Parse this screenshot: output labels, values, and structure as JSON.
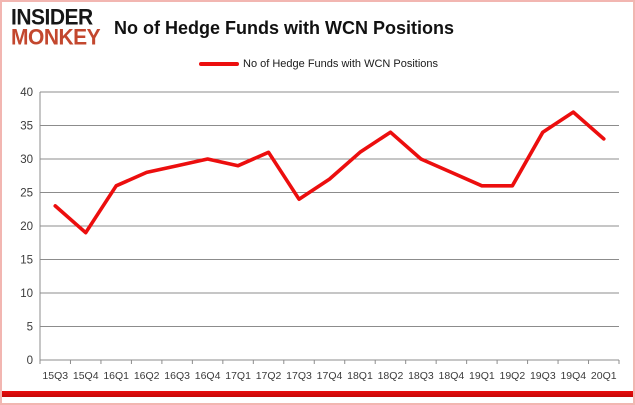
{
  "brand": {
    "line1": "INSIDER",
    "line2": "MONKEY",
    "monkey_color": "#C3472E",
    "insider_color": "#161616"
  },
  "header": {
    "title": "No of Hedge Funds with WCN Positions"
  },
  "legend": {
    "label": "No of Hedge Funds with WCN Positions",
    "swatch_color": "#EC0E0E"
  },
  "chart_data": {
    "type": "line",
    "title": "No of Hedge Funds with WCN Positions",
    "series": [
      {
        "name": "No of Hedge Funds with WCN Positions",
        "values": [
          23,
          19,
          26,
          28,
          29,
          30,
          29,
          31,
          24,
          27,
          31,
          34,
          30,
          28,
          26,
          26,
          34,
          37,
          33
        ]
      }
    ],
    "categories": [
      "15Q3",
      "15Q4",
      "16Q1",
      "16Q2",
      "16Q3",
      "16Q4",
      "17Q1",
      "17Q2",
      "17Q3",
      "17Q4",
      "18Q1",
      "18Q2",
      "18Q3",
      "18Q4",
      "19Q1",
      "19Q2",
      "19Q3",
      "19Q4",
      "20Q1"
    ],
    "xlabel": "",
    "ylabel": "",
    "ylim": [
      0,
      40
    ],
    "ytick_step": 5,
    "grid": true,
    "legend_position": "top",
    "line_color": "#EC0E0E",
    "grid_color": "#8C8C8C",
    "tick_label_color": "#3B3B3B"
  },
  "accents": {
    "bottom_bar_color": "#E90E0E",
    "frame_border_color": "#F2B6B1"
  }
}
